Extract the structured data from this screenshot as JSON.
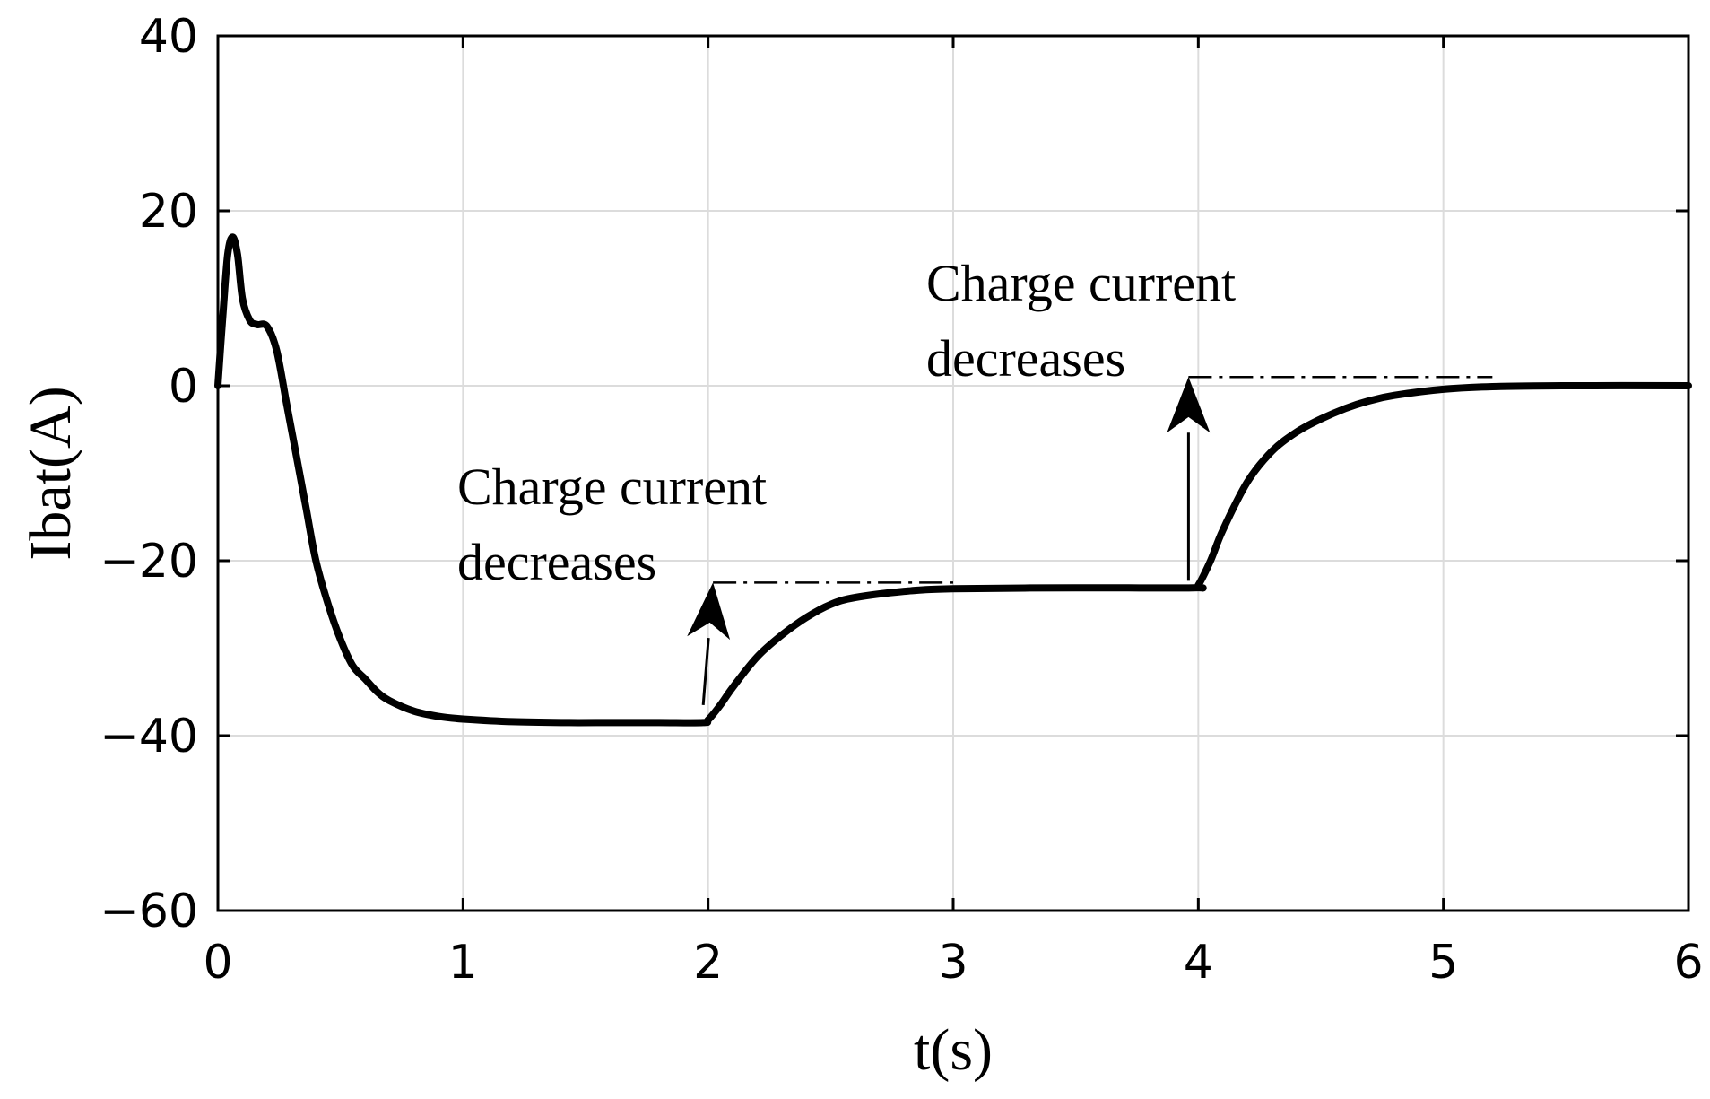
{
  "chart_data": {
    "type": "line",
    "title": "",
    "xlabel": "t(s)",
    "ylabel": "Ibat(A)",
    "xlim": [
      0,
      6
    ],
    "ylim": [
      -60,
      40
    ],
    "xticks": [
      0,
      1,
      2,
      3,
      4,
      5,
      6
    ],
    "yticks": [
      40,
      20,
      0,
      -20,
      -40,
      -60
    ],
    "xtick_labels": [
      "0",
      "1",
      "2",
      "3",
      "4",
      "5",
      "6"
    ],
    "ytick_labels": [
      "40",
      "20",
      "0",
      "−20",
      "−40",
      "−60"
    ],
    "grid": true,
    "series": [
      {
        "color": "#000000",
        "x": [
          0,
          0.02,
          0.04,
          0.06,
          0.08,
          0.1,
          0.13,
          0.16,
          0.2,
          0.24,
          0.28,
          0.32,
          0.36,
          0.4,
          0.45,
          0.5,
          0.55,
          0.6,
          0.65,
          0.7,
          0.8,
          0.9,
          1.0,
          1.2,
          1.4,
          1.6,
          1.8,
          1.98,
          2.0,
          2.05,
          2.1,
          2.2,
          2.3,
          2.4,
          2.5,
          2.6,
          2.8,
          3.0,
          3.5,
          3.98,
          4.0,
          4.05,
          4.1,
          4.2,
          4.3,
          4.4,
          4.5,
          4.6,
          4.7,
          4.8,
          5.0,
          5.2,
          5.5,
          6.0
        ],
        "y": [
          0,
          8,
          15,
          17,
          15,
          10,
          7.5,
          7,
          6.8,
          4,
          -2,
          -8,
          -14,
          -20,
          -25,
          -29,
          -32,
          -33.5,
          -35,
          -36,
          -37.2,
          -37.8,
          -38.1,
          -38.4,
          -38.5,
          -38.5,
          -38.5,
          -38.5,
          -38.2,
          -36.5,
          -34.5,
          -31,
          -28.5,
          -26.5,
          -25,
          -24.2,
          -23.5,
          -23.2,
          -23.1,
          -23.1,
          -22.8,
          -20,
          -16.5,
          -11,
          -7.5,
          -5.3,
          -3.8,
          -2.6,
          -1.7,
          -1.1,
          -0.4,
          -0.1,
          0,
          0
        ]
      }
    ],
    "annotations": [
      {
        "lines": [
          "Charge current",
          "decreases"
        ],
        "arrow_from": [
          1.98,
          -36.5
        ],
        "arrow_to": [
          2.02,
          -22.5
        ],
        "dashed_level": -22.5,
        "dashed_from_x": 2.02,
        "dashed_to_x": 3.0
      },
      {
        "lines": [
          "Charge current",
          "decreases"
        ],
        "arrow_from": [
          3.96,
          -22.3
        ],
        "arrow_to": [
          3.96,
          1
        ],
        "dashed_level": 1,
        "dashed_from_x": 3.96,
        "dashed_to_x": 5.2
      }
    ]
  }
}
